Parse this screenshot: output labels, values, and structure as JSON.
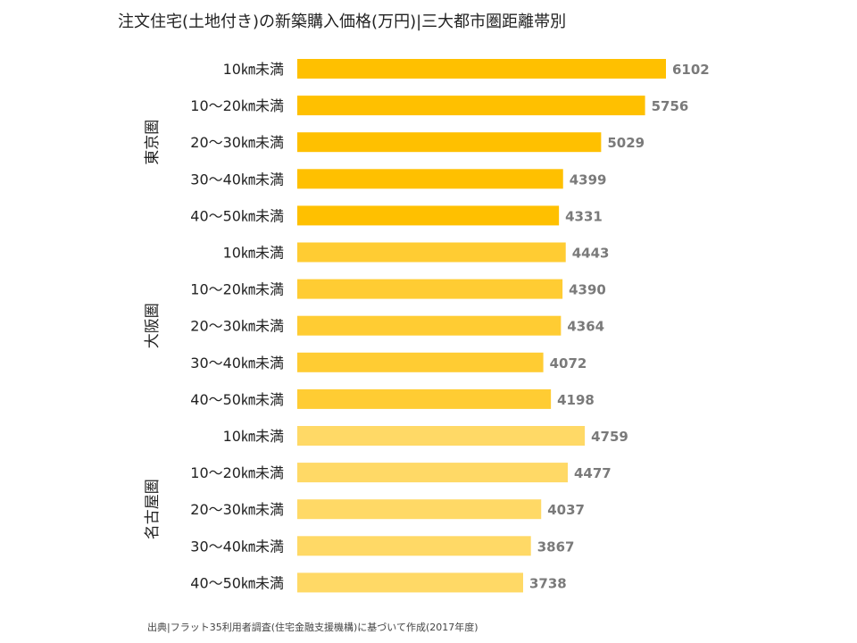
{
  "title": "注文住宅(土地付き)の新築購入価格(万円)|三大都市圏距離帯別",
  "source": "出典|フラット35利用者調査(住宅金融支援機構)に基づいて作成(2017年度)",
  "colors": {
    "東京圏": "#FFC000",
    "大阪圏": "#FFCC33",
    "名古屋圏": "#FFD966",
    "value_text": "#7a7a7a",
    "label_text": "#222222"
  },
  "chart_data": {
    "type": "bar",
    "orientation": "horizontal",
    "title": "注文住宅(土地付き)の新築購入価格(万円)|三大都市圏距離帯別",
    "groups": [
      {
        "name": "東京圏",
        "categories": [
          "10㎞未満",
          "10〜20㎞未満",
          "20〜30㎞未満",
          "30〜40㎞未満",
          "40〜50㎞未満"
        ],
        "values": [
          6102,
          5756,
          5029,
          4399,
          4331
        ]
      },
      {
        "name": "大阪圏",
        "categories": [
          "10㎞未満",
          "10〜20㎞未満",
          "20〜30㎞未満",
          "30〜40㎞未満",
          "40〜50㎞未満"
        ],
        "values": [
          4443,
          4390,
          4364,
          4072,
          4198
        ]
      },
      {
        "name": "名古屋圏",
        "categories": [
          "10㎞未満",
          "10〜20㎞未満",
          "20〜30㎞未満",
          "30〜40㎞未満",
          "40〜50㎞未満"
        ],
        "values": [
          4759,
          4477,
          4037,
          3867,
          3738
        ]
      }
    ],
    "xlim": [
      0,
      6102
    ],
    "grid": false,
    "legend": "none"
  }
}
